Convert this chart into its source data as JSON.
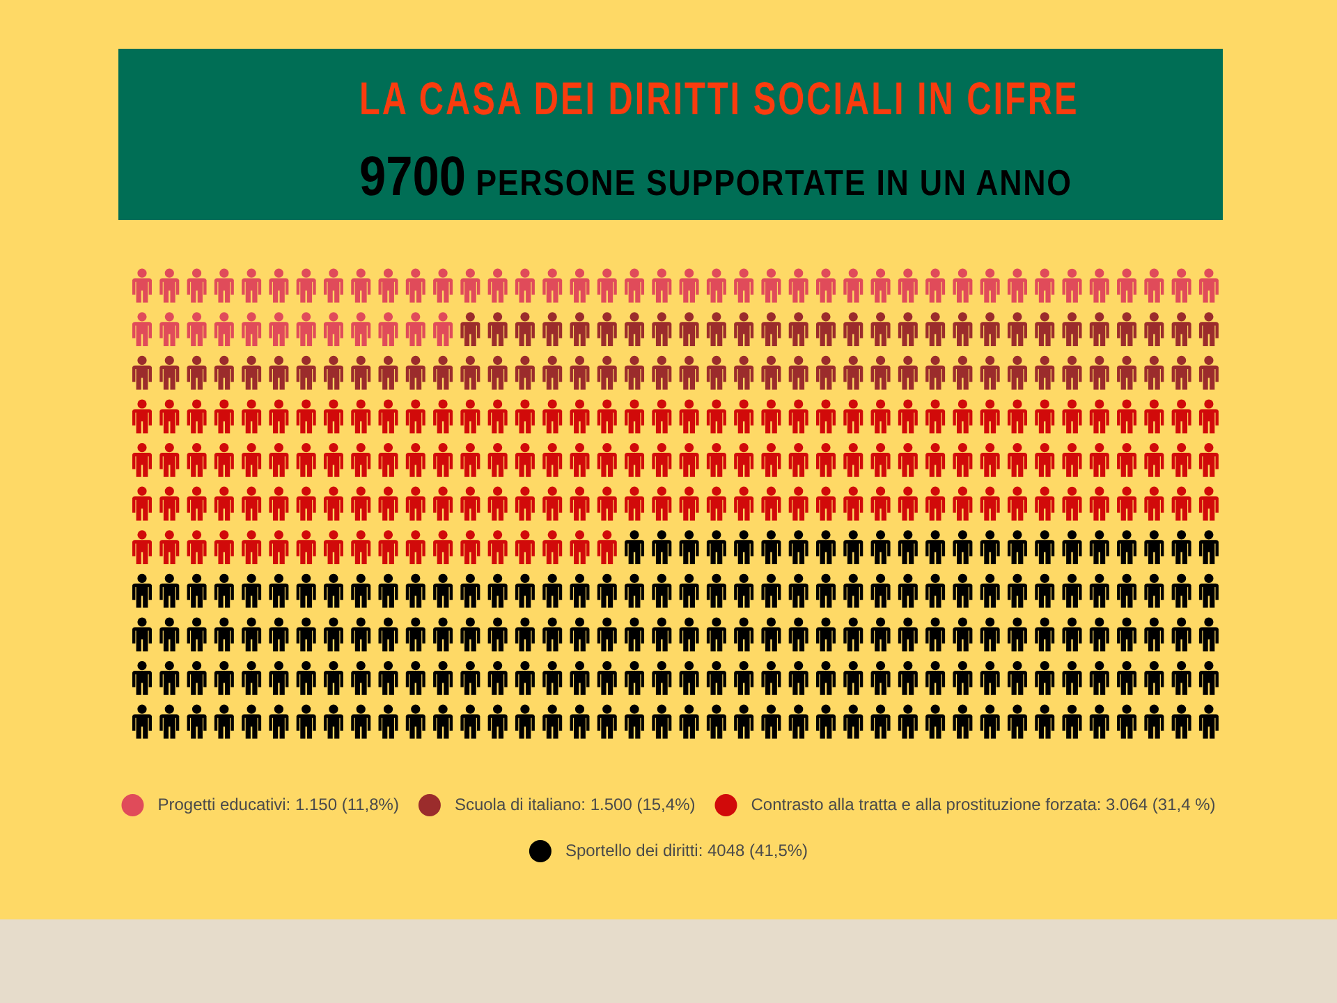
{
  "chart_data": {
    "type": "other",
    "title": "LA CASA DEI DIRITTI SOCIALI IN CIFRE",
    "subtitle": "9700 PERSONE SUPPORTATE IN UN ANNO",
    "series": [
      {
        "name": "Progetti educativi:",
        "color": "#e04b5a",
        "values": [
          1150
        ],
        "value_labels": [
          "1.150 (11,8%)"
        ]
      },
      {
        "name": "Scuola di italiano:",
        "color": "#9b2c2c",
        "values": [
          1500
        ],
        "value_labels": [
          "1.500 (15,4%)"
        ]
      },
      {
        "name": "Contrasto alla tratta e alla prostituzione forzata:",
        "color": "#d10a0a",
        "values": [
          3064
        ],
        "value_labels": [
          "3.064 (31,4 %)"
        ]
      },
      {
        "name": "Sportello dei diritti:",
        "color": "#000000",
        "values": [
          4048
        ],
        "value_labels": [
          "4048 (41,5%)"
        ]
      }
    ],
    "legend": "bottom"
  }
}
